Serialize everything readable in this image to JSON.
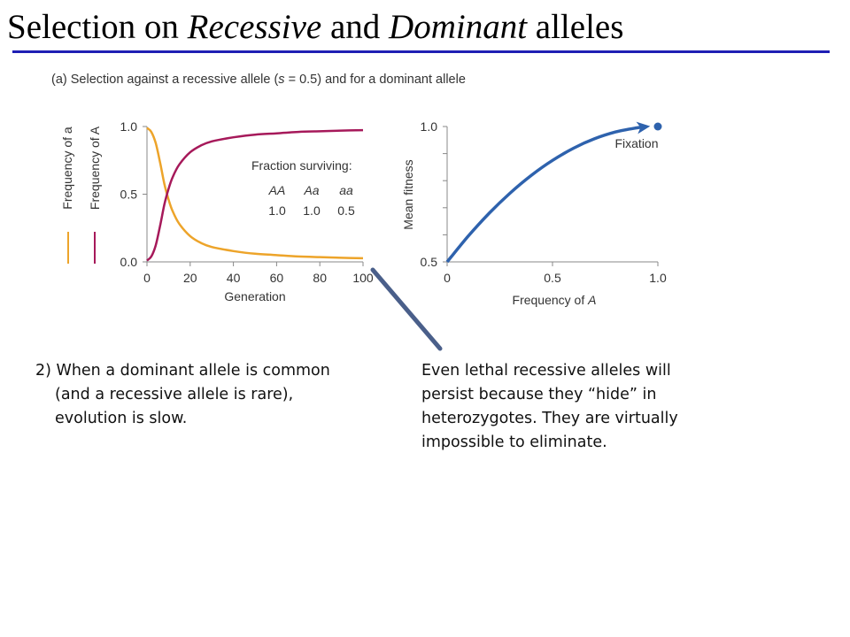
{
  "slide": {
    "title_pre": "Selection on ",
    "title_em1": "Recessive",
    "title_mid": " and ",
    "title_em2": "Dominant",
    "title_post": " alleles"
  },
  "figure": {
    "caption_pre": "(a) Selection against a recessive allele (",
    "caption_em": "s",
    "caption_post": " = 0.5) and for a dominant allele"
  },
  "colors": {
    "title_rule": "#1f1fb4",
    "freq_a": "#eda42a",
    "freq_A": "#a6195a",
    "fitness": "#2e62ad",
    "arrow": "#4a5f8a"
  },
  "chart_data": [
    {
      "type": "line",
      "xlabel": "Generation",
      "ylabel_a": "Frequency of a",
      "ylabel_A": "Frequency of A",
      "xlim": [
        0,
        100
      ],
      "ylim": [
        0,
        1
      ],
      "xticks": [
        "0",
        "20",
        "40",
        "60",
        "80",
        "100"
      ],
      "yticks": [
        "0.0",
        "0.5",
        "1.0"
      ],
      "series": [
        {
          "name": "Frequency of a",
          "x": [
            0,
            2,
            4,
            6,
            8,
            10,
            12,
            15,
            20,
            25,
            30,
            40,
            50,
            60,
            70,
            80,
            90,
            100
          ],
          "y": [
            0.99,
            0.96,
            0.88,
            0.74,
            0.58,
            0.46,
            0.37,
            0.28,
            0.19,
            0.14,
            0.11,
            0.08,
            0.06,
            0.05,
            0.04,
            0.035,
            0.03,
            0.027
          ]
        },
        {
          "name": "Frequency of A",
          "x": [
            0,
            2,
            4,
            6,
            8,
            10,
            12,
            15,
            20,
            25,
            30,
            40,
            50,
            60,
            70,
            80,
            90,
            100
          ],
          "y": [
            0.01,
            0.04,
            0.12,
            0.26,
            0.42,
            0.54,
            0.63,
            0.72,
            0.81,
            0.86,
            0.89,
            0.92,
            0.94,
            0.95,
            0.96,
            0.965,
            0.97,
            0.973
          ]
        }
      ],
      "legend_title": "Fraction surviving:",
      "legend_headers": [
        "AA",
        "Aa",
        "aa"
      ],
      "legend_values": [
        "1.0",
        "1.0",
        "0.5"
      ]
    },
    {
      "type": "line",
      "xlabel_pre": "Frequency of ",
      "xlabel_em": "A",
      "ylabel": "Mean fitness",
      "xlim": [
        0,
        1
      ],
      "ylim": [
        0.5,
        1
      ],
      "xticks": [
        "0",
        "0.5",
        "1.0"
      ],
      "yticks": [
        "0.5",
        "1.0"
      ],
      "series": [
        {
          "name": "Mean fitness",
          "x": [
            0,
            0.1,
            0.2,
            0.3,
            0.4,
            0.5,
            0.6,
            0.7,
            0.8,
            0.9,
            0.93
          ],
          "y": [
            0.5,
            0.595,
            0.68,
            0.755,
            0.82,
            0.875,
            0.92,
            0.955,
            0.98,
            0.995,
            0.998
          ]
        }
      ],
      "endpoint": {
        "x": 1.0,
        "y": 1.0
      },
      "annotation": "Fixation"
    }
  ],
  "text": {
    "left_line1": "2) When a dominant allele is common",
    "left_line2": "(and a recessive allele is rare),",
    "left_line3": "evolution is slow.",
    "right": "Even lethal recessive alleles will persist because they “hide” in heterozygotes. They are virtually impossible to eliminate."
  }
}
